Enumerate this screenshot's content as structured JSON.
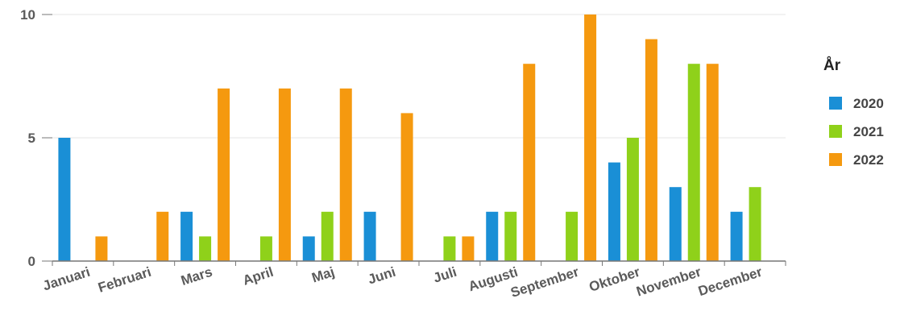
{
  "chart_data": {
    "type": "bar",
    "categories": [
      "Januari",
      "Februari",
      "Mars",
      "April",
      "Maj",
      "Juni",
      "Juli",
      "Augusti",
      "September",
      "Oktober",
      "November",
      "December"
    ],
    "series": [
      {
        "name": "2020",
        "color": "#1a8fd6",
        "values": [
          5,
          0,
          2,
          0,
          1,
          2,
          0,
          2,
          0,
          4,
          3,
          2
        ]
      },
      {
        "name": "2021",
        "color": "#8fd11a",
        "values": [
          0,
          0,
          1,
          1,
          2,
          0,
          1,
          2,
          2,
          5,
          8,
          3
        ]
      },
      {
        "name": "2022",
        "color": "#f5990f",
        "values": [
          1,
          2,
          7,
          7,
          7,
          6,
          1,
          8,
          10,
          9,
          8,
          0
        ]
      }
    ],
    "y_ticks": [
      "0",
      "5",
      "10"
    ],
    "ylim": [
      0,
      10
    ],
    "grid": true,
    "legend": {
      "title": "År",
      "position": "right"
    }
  }
}
